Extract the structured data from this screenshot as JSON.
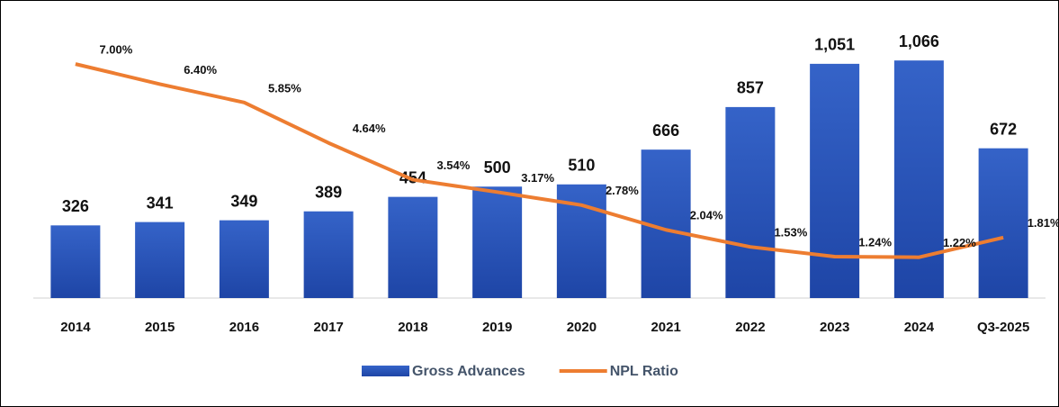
{
  "chart_data": {
    "type": "bar_line",
    "categories": [
      "2014",
      "2015",
      "2016",
      "2017",
      "2018",
      "2019",
      "2020",
      "2021",
      "2022",
      "2023",
      "2024",
      "Q3-2025"
    ],
    "series": [
      {
        "name": "Gross Advances",
        "type": "bar",
        "color": "#2a56bb",
        "values": [
          326,
          341,
          349,
          389,
          454,
          500,
          510,
          666,
          857,
          1051,
          1066,
          672
        ],
        "value_labels": [
          "326",
          "341",
          "349",
          "389",
          "454",
          "500",
          "510",
          "666",
          "857",
          "1,051",
          "1,066",
          "672"
        ]
      },
      {
        "name": "NPL Ratio",
        "type": "line",
        "axis": "y2",
        "color": "#ed7d31",
        "values": [
          7.0,
          6.4,
          5.85,
          4.64,
          3.54,
          3.17,
          2.78,
          2.04,
          1.53,
          1.24,
          1.22,
          1.81
        ],
        "value_labels": [
          "7.00%",
          "6.40%",
          "5.85%",
          "4.64%",
          "3.54%",
          "3.17%",
          "2.78%",
          "2.04%",
          "1.53%",
          "1.24%",
          "1.22%",
          "1.81%"
        ]
      }
    ],
    "ylim": [
      0,
      1200
    ],
    "y2lim": [
      0,
      8
    ],
    "legend": "bottom"
  }
}
